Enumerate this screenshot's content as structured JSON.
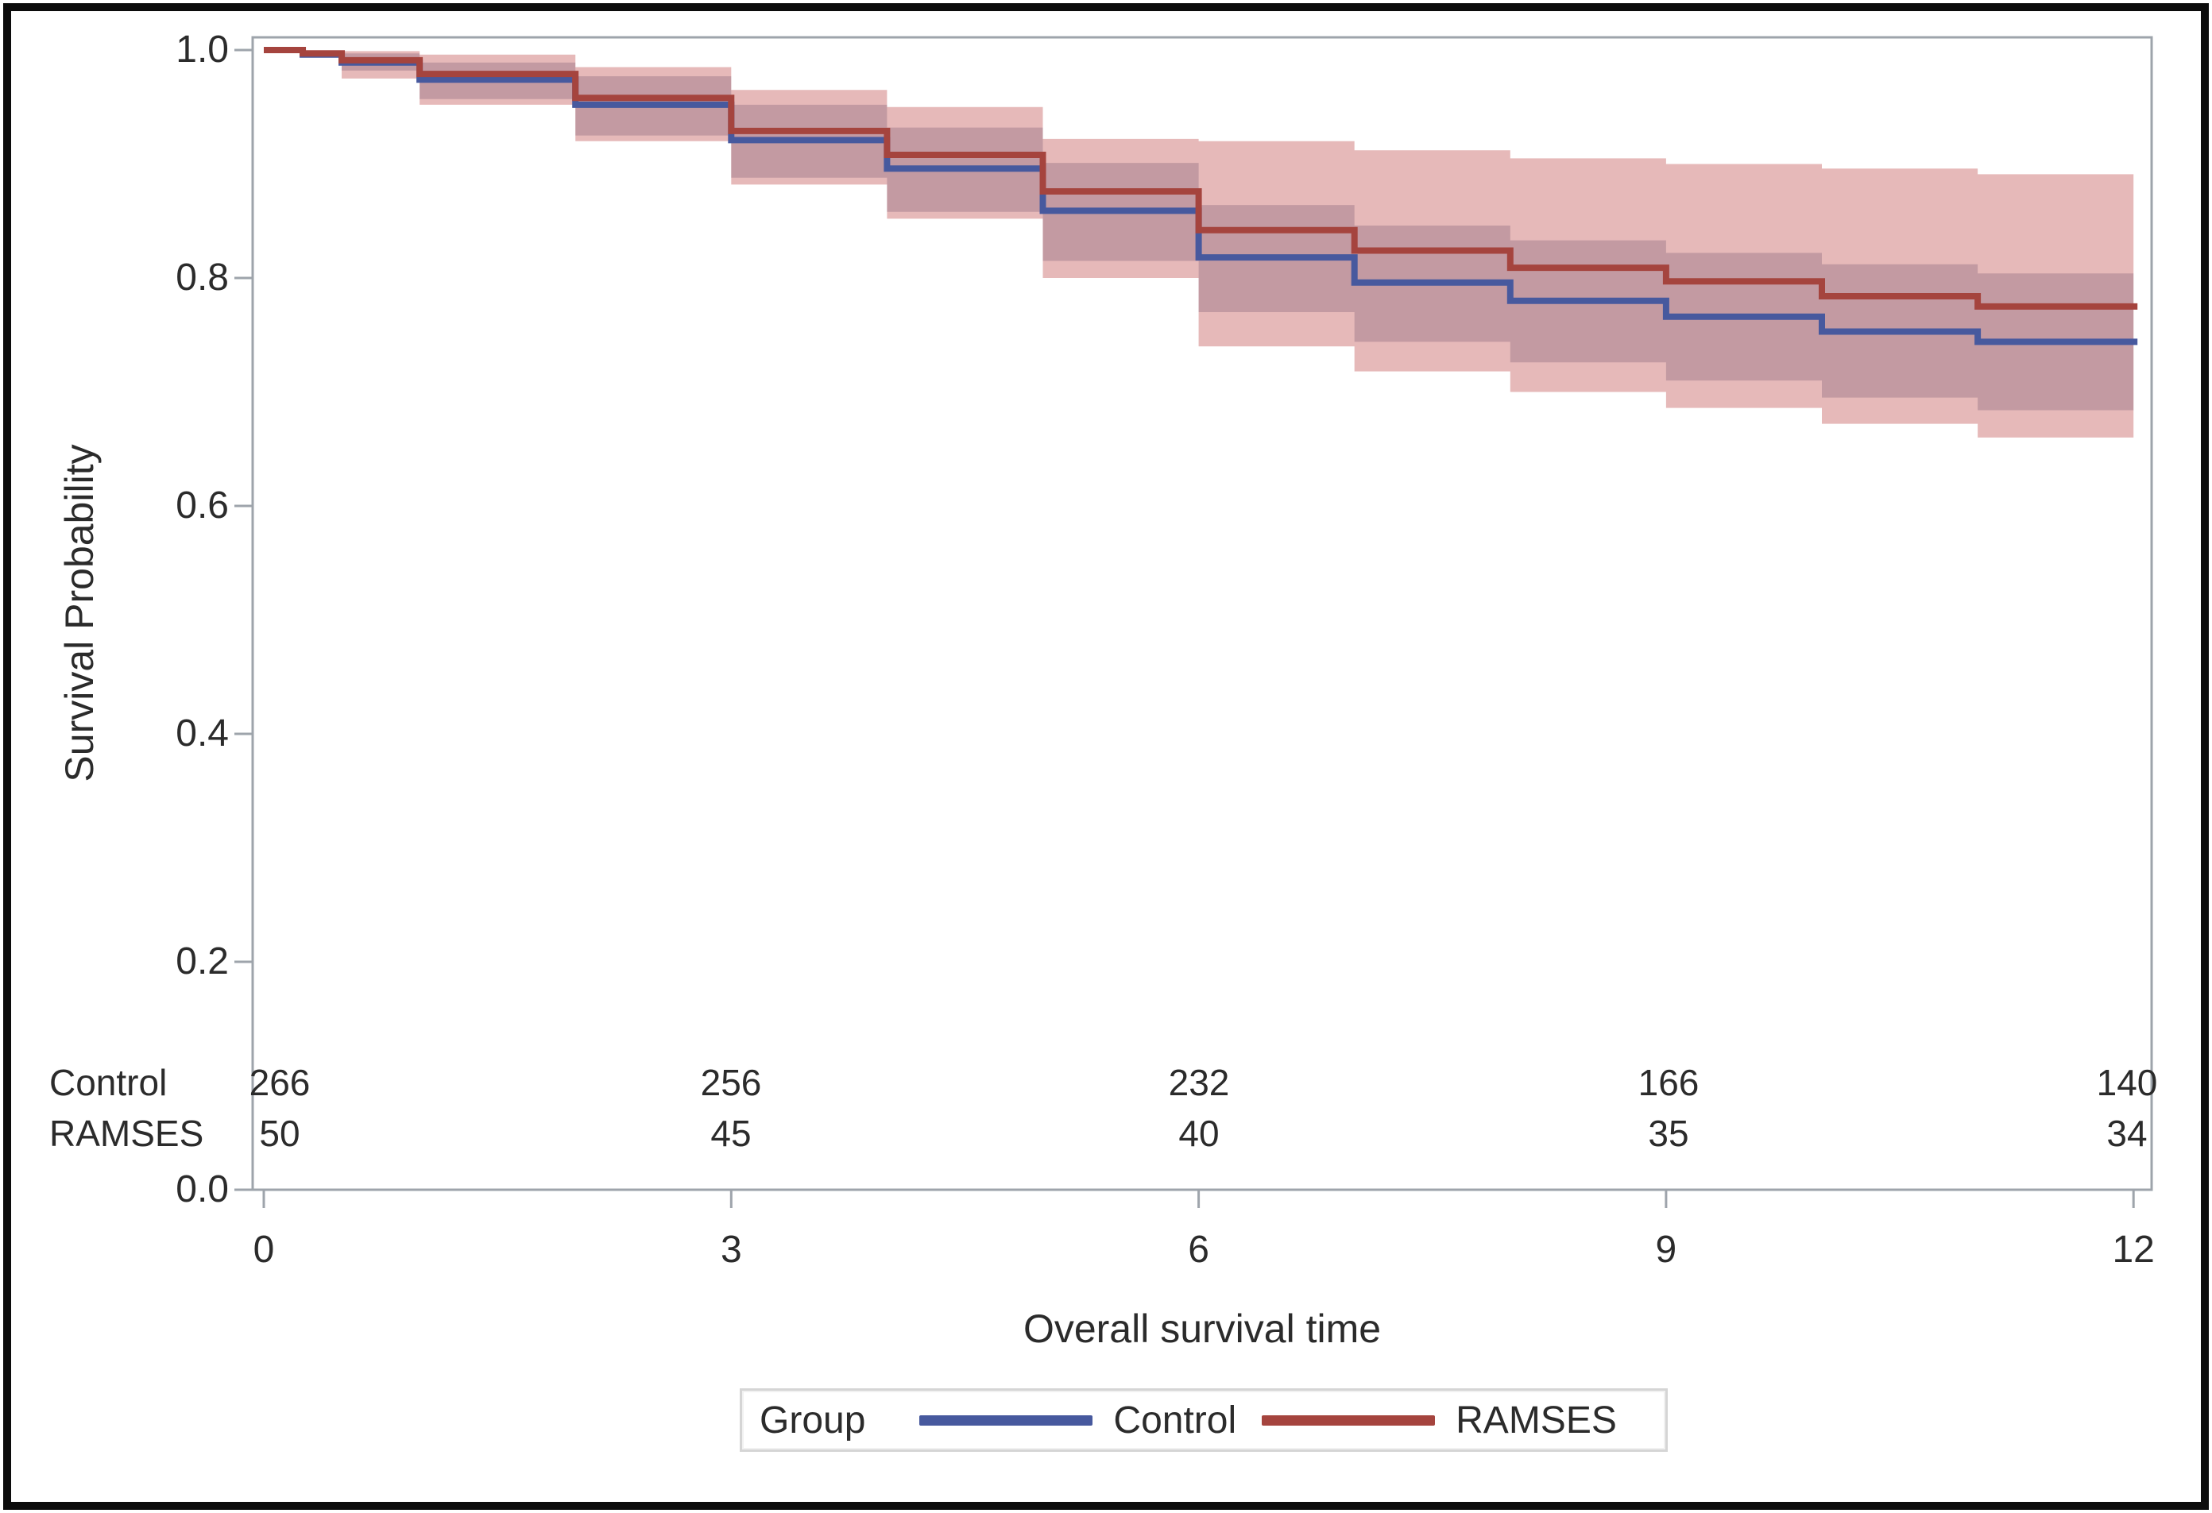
{
  "chart_data": {
    "type": "line",
    "subtype": "kaplan-meier-step",
    "title": "",
    "xlabel": "Overall survival time",
    "ylabel": "Survival Probability",
    "xlim": [
      0,
      12
    ],
    "ylim": [
      0.0,
      1.0
    ],
    "grid": false,
    "x_axis": {
      "title": "Overall survival time",
      "tick_values": [
        0,
        3,
        6,
        9,
        12
      ],
      "tick_labels": [
        "0",
        "3",
        "6",
        "9",
        "12"
      ]
    },
    "y_axis": {
      "title": "Survival Probability",
      "tick_values": [
        1.0,
        0.8,
        0.6,
        0.4,
        0.2,
        0.0
      ],
      "tick_labels": [
        "1.0",
        "0.8",
        "0.6",
        "0.4",
        "0.2",
        "0.0"
      ]
    },
    "series": [
      {
        "name": "Control",
        "color": "#47599E",
        "band_color": "#7A5A74",
        "band_opacity": 0.32,
        "end_time": 12,
        "steps": [
          [
            0,
            1.0
          ],
          [
            0.25,
            0.996
          ],
          [
            0.5,
            0.989
          ],
          [
            1,
            0.974
          ],
          [
            2,
            0.952
          ],
          [
            3,
            0.921
          ],
          [
            4,
            0.896
          ],
          [
            5,
            0.859
          ],
          [
            6,
            0.818
          ],
          [
            7,
            0.796
          ],
          [
            8,
            0.78
          ],
          [
            9,
            0.766
          ],
          [
            10,
            0.753
          ],
          [
            11,
            0.744
          ]
        ],
        "band": [
          [
            0.5,
            0.997,
            0.982
          ],
          [
            1,
            0.989,
            0.957
          ],
          [
            2,
            0.977,
            0.925
          ],
          [
            3,
            0.952,
            0.888
          ],
          [
            4,
            0.932,
            0.858
          ],
          [
            5,
            0.901,
            0.815
          ],
          [
            6,
            0.864,
            0.77
          ],
          [
            7,
            0.846,
            0.744
          ],
          [
            8,
            0.833,
            0.726
          ],
          [
            9,
            0.822,
            0.71
          ],
          [
            10,
            0.812,
            0.695
          ],
          [
            11,
            0.804,
            0.684
          ]
        ]
      },
      {
        "name": "RAMSES",
        "color": "#A5443E",
        "band_color": "#C05050",
        "band_opacity": 0.4,
        "end_time": 12,
        "steps": [
          [
            0,
            1.0
          ],
          [
            0.25,
            0.997
          ],
          [
            0.5,
            0.991
          ],
          [
            1,
            0.979
          ],
          [
            2,
            0.958
          ],
          [
            3,
            0.929
          ],
          [
            4,
            0.908
          ],
          [
            5,
            0.876
          ],
          [
            6,
            0.842
          ],
          [
            7,
            0.824
          ],
          [
            8,
            0.809
          ],
          [
            9,
            0.797
          ],
          [
            10,
            0.784
          ],
          [
            11,
            0.775
          ]
        ],
        "band": [
          [
            0.5,
            0.999,
            0.975
          ],
          [
            1,
            0.996,
            0.952
          ],
          [
            2,
            0.985,
            0.92
          ],
          [
            3,
            0.965,
            0.882
          ],
          [
            4,
            0.95,
            0.852
          ],
          [
            5,
            0.922,
            0.8
          ],
          [
            6,
            0.92,
            0.74
          ],
          [
            7,
            0.912,
            0.718
          ],
          [
            8,
            0.905,
            0.7
          ],
          [
            9,
            0.9,
            0.686
          ],
          [
            10,
            0.896,
            0.672
          ],
          [
            11,
            0.891,
            0.66
          ]
        ]
      }
    ],
    "at_risk_table": {
      "time_points": [
        0,
        3,
        6,
        9,
        12
      ],
      "rows": [
        {
          "label": "Control",
          "values": [
            "266",
            "256",
            "232",
            "166",
            "140"
          ]
        },
        {
          "label": "RAMSES",
          "values": [
            "50",
            "45",
            "40",
            "35",
            "34"
          ]
        }
      ]
    },
    "legend": {
      "position": "bottom",
      "title": "Group",
      "entries": [
        {
          "label": "Control",
          "color": "#47599E"
        },
        {
          "label": "RAMSES",
          "color": "#A5443E"
        }
      ]
    }
  },
  "colors": {
    "frame": "#9EA4AB",
    "tick": "#9EA4AB",
    "text": "#2b2b2b",
    "control_line": "#47599E",
    "ramses_line": "#A5443E",
    "ramses_band_pink": "#E9B5BA",
    "overlap_band_mauve": "#C69CA9",
    "outer_border": "#0c0c0c",
    "legend_border": "#d5d5d5",
    "background": "#ffffff"
  }
}
